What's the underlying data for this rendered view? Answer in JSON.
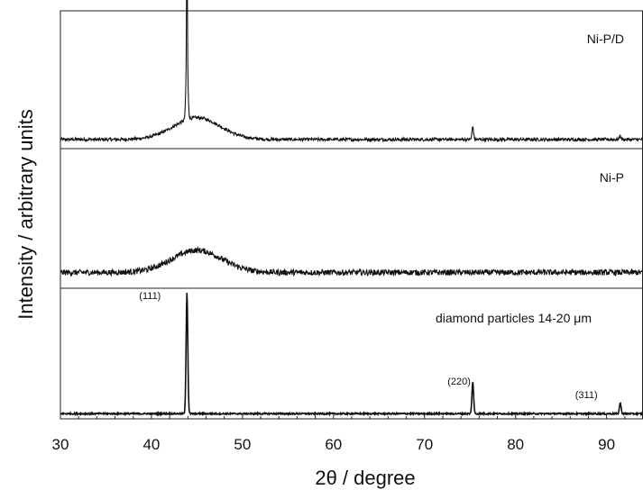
{
  "chart_data": {
    "type": "line",
    "xlabel": "2θ / degree",
    "ylabel": "Intensity / arbitrary units",
    "xlim": [
      30,
      94
    ],
    "xticks": [
      30,
      40,
      50,
      60,
      70,
      80,
      90
    ],
    "xtick_labels": [
      "30",
      "40",
      "50",
      "60",
      "70",
      "80",
      "90"
    ],
    "panels": [
      {
        "label": "Ni-P/D",
        "baseline": 0.05,
        "noise": 0.012,
        "halo": {
          "center": 45,
          "width": 3.6,
          "height": 0.17
        },
        "peaks": [
          {
            "x": 43.9,
            "height": 1.0,
            "width": 0.06
          },
          {
            "x": 43.9,
            "height": 0.45,
            "width": 0.16
          },
          {
            "x": 75.3,
            "height": 0.1,
            "width": 0.12
          },
          {
            "x": 91.5,
            "height": 0.03,
            "width": 0.12
          }
        ]
      },
      {
        "label": "Ni-P",
        "baseline": 0.1,
        "noise": 0.022,
        "halo": {
          "center": 45,
          "width": 3.9,
          "height": 0.17
        },
        "peaks": []
      },
      {
        "label": "diamond particles 14-20 μm",
        "baseline": 0.02,
        "noise": 0.006,
        "halo": null,
        "peaks": [
          {
            "x": 43.9,
            "height": 1.0,
            "width": 0.13
          },
          {
            "x": 75.3,
            "height": 0.26,
            "width": 0.13
          },
          {
            "x": 91.5,
            "height": 0.09,
            "width": 0.13
          }
        ],
        "peak_labels": [
          {
            "text": "(111)",
            "x": 43.9
          },
          {
            "text": "(220)",
            "x": 75.3
          },
          {
            "text": "(311)",
            "x": 91.5
          }
        ]
      }
    ]
  }
}
